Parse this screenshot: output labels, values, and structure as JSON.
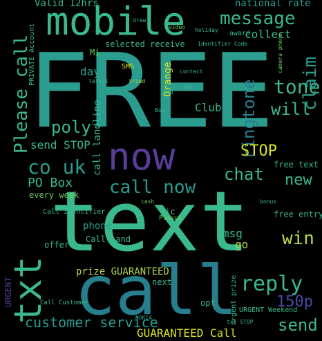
{
  "colors": {
    "background": "#000000",
    "palette": [
      "#3aba8c",
      "#2a9d8f",
      "#5a3c9b",
      "#b3d64a",
      "#4a4aa8",
      "#277f8e",
      "#6ccd5a",
      "#39568c",
      "#1f9a8a",
      "#440154",
      "#dce319",
      "#31688e"
    ]
  },
  "words": [
    {
      "text": "FREE"
    },
    {
      "text": "text"
    },
    {
      "text": "call"
    },
    {
      "text": "mobile"
    },
    {
      "text": "now"
    },
    {
      "text": "txt"
    },
    {
      "text": "call now"
    },
    {
      "text": "reply"
    },
    {
      "text": "message"
    },
    {
      "text": "Please call"
    },
    {
      "text": "co uk"
    },
    {
      "text": "ringtone"
    },
    {
      "text": "tone"
    },
    {
      "text": "will"
    },
    {
      "text": "claim"
    },
    {
      "text": "STOP"
    },
    {
      "text": "chat"
    },
    {
      "text": "new"
    },
    {
      "text": "poly"
    },
    {
      "text": "send STOP"
    },
    {
      "text": "PO Box"
    },
    {
      "text": "every week"
    },
    {
      "text": "win"
    },
    {
      "text": "150p"
    },
    {
      "text": "send"
    },
    {
      "text": "customer service"
    },
    {
      "text": "GUARANTEED Call"
    },
    {
      "text": "prize GUARANTEED"
    },
    {
      "text": "collect"
    },
    {
      "text": "national rate"
    },
    {
      "text": "Valid 12hrs"
    },
    {
      "text": "day"
    },
    {
      "text": "Orange"
    },
    {
      "text": "Club"
    },
    {
      "text": "call landline"
    },
    {
      "text": "free text"
    },
    {
      "text": "free entry"
    },
    {
      "text": "msg"
    },
    {
      "text": "go"
    },
    {
      "text": "pic"
    },
    {
      "text": "phone"
    },
    {
      "text": "offer"
    },
    {
      "text": "Call land"
    },
    {
      "text": "URGENT"
    },
    {
      "text": "next"
    },
    {
      "text": "SMS"
    },
    {
      "text": "selected receive"
    },
    {
      "text": "award"
    },
    {
      "text": "Mi"
    },
    {
      "text": "PRIVATE Account"
    },
    {
      "text": "Call Identifier"
    },
    {
      "text": "urgent prize"
    },
    {
      "text": "opt"
    },
    {
      "text": "camera phone"
    },
    {
      "text": "Identifier Code"
    },
    {
      "text": "Box"
    },
    {
      "text": "Call Customer"
    },
    {
      "text": "Please"
    },
    {
      "text": "NOKIA"
    },
    {
      "text": "URGENT Weekend"
    },
    {
      "text": "video"
    },
    {
      "text": "latest"
    },
    {
      "text": "mob"
    },
    {
      "text": "txt STOP"
    },
    {
      "text": "cash"
    },
    {
      "text": "bonus"
    },
    {
      "text": "holiday"
    },
    {
      "text": "contact"
    },
    {
      "text": "draw"
    },
    {
      "text": "tried"
    },
    {
      "text": "sae"
    }
  ]
}
